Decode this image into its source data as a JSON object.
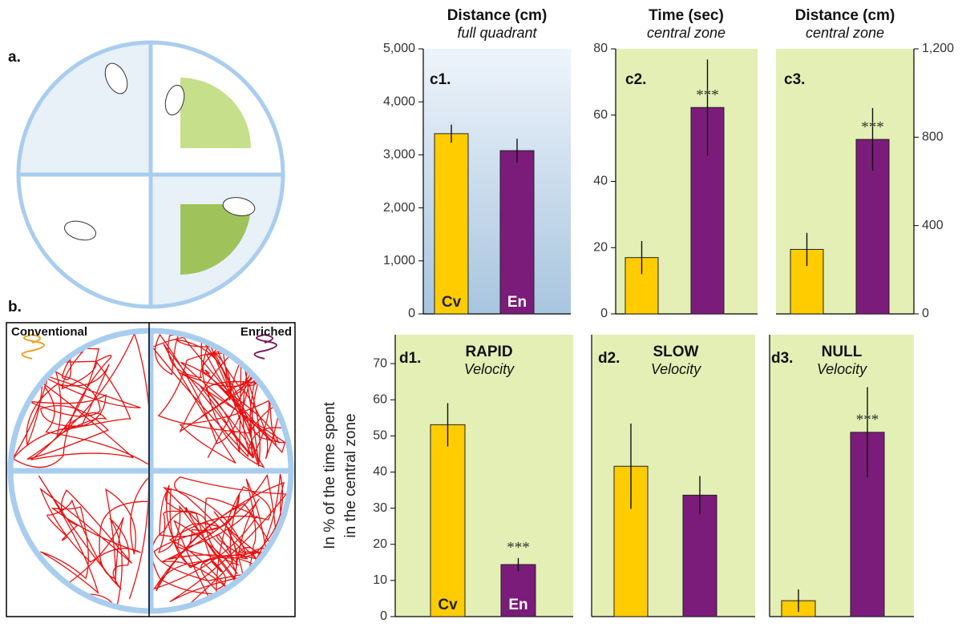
{
  "illustration": {
    "label_a": "a.",
    "label_b": "b.",
    "conventional": "Conventional",
    "enriched": "Enriched"
  },
  "chart_data": [
    {
      "type": "bar",
      "title": "Distance (cm)",
      "subtitle": "full quadrant",
      "panel": "c1.",
      "categories": [
        "Cv",
        "En"
      ],
      "values": [
        3400,
        3080
      ],
      "errors": [
        170,
        225
      ],
      "significance": [
        null,
        null
      ],
      "colors": [
        "#ffcc00",
        "#7b1c7a"
      ],
      "ylim": [
        0,
        5000
      ],
      "yticks": [
        0,
        {
          "value": 1000,
          "label": "1,000"
        },
        {
          "value": 2000,
          "label": "2,000"
        },
        {
          "value": 3000,
          "label": "3,000"
        },
        {
          "value": 4000,
          "label": "4,000"
        },
        {
          "value": 5000,
          "label": "5,000"
        }
      ],
      "axis_side": "left"
    },
    {
      "type": "bar",
      "title": "Time (sec)",
      "subtitle": "central zone",
      "panel": "c2.",
      "categories": [
        null,
        null
      ],
      "values": [
        17,
        62.3
      ],
      "errors": [
        5,
        14.5
      ],
      "significance": [
        null,
        "***"
      ],
      "colors": [
        "#ffcc00",
        "#7b1c7a"
      ],
      "ylim": [
        0,
        80
      ],
      "yticks": [
        0,
        20,
        40,
        60,
        80
      ],
      "axis_side": "left"
    },
    {
      "type": "bar",
      "title": "Distance (cm)",
      "subtitle": "central zone",
      "panel": "c3.",
      "categories": [
        null,
        null
      ],
      "values": [
        292,
        790
      ],
      "errors": [
        75,
        142
      ],
      "significance": [
        null,
        "***"
      ],
      "colors": [
        "#ffcc00",
        "#7b1c7a"
      ],
      "ylim": [
        0,
        1200
      ],
      "yticks": [
        0,
        400,
        800,
        {
          "value": 1200,
          "label": "1,200"
        }
      ],
      "axis_side": "right"
    },
    {
      "type": "bar",
      "title": "RAPID",
      "subtitle": "Velocity",
      "panel": "d1.",
      "ylabel": [
        "In % of the time spent",
        "in the central zone"
      ],
      "categories": [
        "Cv",
        "En"
      ],
      "values": [
        53.1,
        14.4
      ],
      "errors": [
        6,
        1.8
      ],
      "significance": [
        null,
        "***"
      ],
      "colors": [
        "#ffcc00",
        "#7b1c7a"
      ],
      "ylim": [
        0,
        78
      ],
      "yticks": [
        0,
        10,
        20,
        30,
        40,
        50,
        60,
        70
      ],
      "axis_side": "left"
    },
    {
      "type": "bar",
      "title": "SLOW",
      "subtitle": "Velocity",
      "panel": "d2.",
      "categories": [
        null,
        null
      ],
      "values": [
        41.6,
        33.6
      ],
      "errors": [
        11.8,
        5.3
      ],
      "significance": [
        null,
        null
      ],
      "colors": [
        "#ffcc00",
        "#7b1c7a"
      ],
      "ylim": [
        0,
        78
      ],
      "axis_side": "left"
    },
    {
      "type": "bar",
      "title": "NULL",
      "subtitle": "Velocity",
      "panel": "d3.",
      "categories": [
        null,
        null
      ],
      "values": [
        4.4,
        51
      ],
      "errors": [
        3.1,
        12.5
      ],
      "significance": [
        null,
        "***"
      ],
      "colors": [
        "#ffcc00",
        "#7b1c7a"
      ],
      "ylim": [
        0,
        78
      ],
      "axis_side": "left"
    }
  ]
}
